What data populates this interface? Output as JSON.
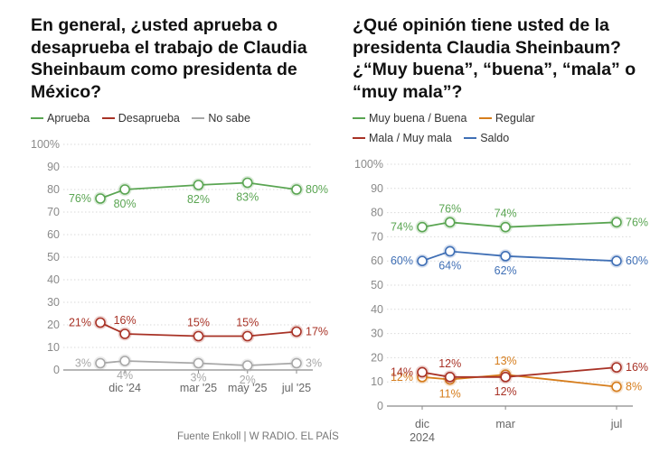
{
  "left": {
    "title": "En general, ¿usted aprueba o desaprueba el trabajo de Claudia Sheinbaum como presidenta de México?",
    "legend": [
      "Aprueba",
      "Desaprueba",
      "No sabe"
    ]
  },
  "right": {
    "title": "¿Qué opinión tiene usted de la presidenta Claudia Sheinbaum? ¿“Muy buena”, “buena”, “mala” o “muy mala”?",
    "legend": [
      "Muy buena / Buena",
      "Regular",
      "Mala / Muy mala",
      "Saldo"
    ]
  },
  "source": "Fuente Enkoll | W RADIO. EL PAÍS",
  "chart_data": [
    {
      "type": "line",
      "title": "En general, ¿usted aprueba o desaprueba el trabajo de Claudia Sheinbaum como presidenta de México?",
      "x_tick_labels": [
        "dic '24",
        "mar '25",
        "may '25",
        "jul '25"
      ],
      "y_tick_labels": [
        "0",
        "10",
        "20",
        "30",
        "40",
        "50",
        "60",
        "70",
        "80",
        "90",
        "100%"
      ],
      "ylim": [
        0,
        100
      ],
      "grid": true,
      "legend_position": "top-left",
      "x": [
        "2024-11",
        "2024-12",
        "2025-03",
        "2025-05",
        "2025-07"
      ],
      "series": [
        {
          "name": "Aprueba",
          "color": "#5aa552",
          "values": [
            76,
            80,
            82,
            83,
            80
          ],
          "labels": [
            "76%",
            "80%",
            "82%",
            "83%",
            "80%"
          ]
        },
        {
          "name": "Desaprueba",
          "color": "#a83226",
          "values": [
            21,
            16,
            15,
            15,
            17
          ],
          "labels": [
            "21%",
            "16%",
            "15%",
            "15%",
            "17%"
          ]
        },
        {
          "name": "No sabe",
          "color": "#a8a8a8",
          "values": [
            3,
            4,
            3,
            2,
            3
          ],
          "labels": [
            "3%",
            "4%",
            "3%",
            "2%",
            "3%"
          ]
        }
      ]
    },
    {
      "type": "line",
      "title": "¿Qué opinión tiene usted de la presidenta Claudia Sheinbaum? ¿“Muy buena”, “buena”, “mala” o “muy mala”?",
      "x_tick_labels": [
        "dic\n2024",
        "mar",
        "jul"
      ],
      "y_tick_labels": [
        "0",
        "10",
        "20",
        "30",
        "40",
        "50",
        "60",
        "70",
        "80",
        "90",
        "100%"
      ],
      "ylim": [
        0,
        100
      ],
      "grid": true,
      "legend_position": "top-left",
      "x": [
        "2024-12",
        "2025-01",
        "2025-03",
        "2025-07"
      ],
      "series": [
        {
          "name": "Muy buena / Buena",
          "color": "#5aa552",
          "values": [
            74,
            76,
            74,
            76
          ],
          "labels": [
            "74%",
            "76%",
            "74%",
            "76%"
          ]
        },
        {
          "name": "Regular",
          "color": "#d67d1c",
          "values": [
            12,
            11,
            13,
            8
          ],
          "labels": [
            "12%",
            "11%",
            "13%",
            "8%"
          ]
        },
        {
          "name": "Mala / Muy mala",
          "color": "#a83226",
          "values": [
            14,
            12,
            12,
            16
          ],
          "labels": [
            "14%",
            "12%",
            "12%",
            "16%"
          ]
        },
        {
          "name": "Saldo",
          "color": "#3f6fb5",
          "values": [
            60,
            64,
            62,
            60
          ],
          "labels": [
            "60%",
            "64%",
            "62%",
            "60%"
          ]
        }
      ]
    }
  ]
}
